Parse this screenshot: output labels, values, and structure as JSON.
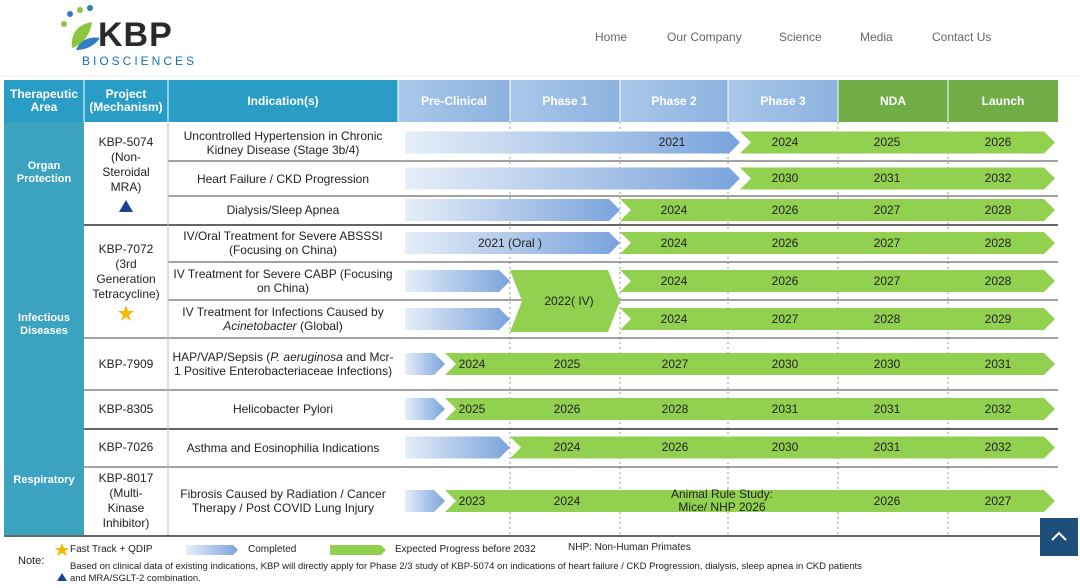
{
  "header": {
    "logo": {
      "mark": "KBP",
      "sub": "BIOSCIENCES"
    },
    "nav": [
      "Home",
      "Our Company",
      "Science",
      "Media",
      "Contact Us"
    ]
  },
  "table": {
    "columns": [
      "Therapeutic Area",
      "Project (Mechanism)",
      "Indication(s)",
      "Pre-Clinical",
      "Phase 1",
      "Phase 2",
      "Phase 3",
      "NDA",
      "Launch"
    ],
    "groups": [
      {
        "area": "Organ Protection",
        "projects": [
          {
            "name": "KBP-5074",
            "mechanism": "(Non-Steroidal MRA)",
            "marker": "triangle",
            "indications": [
              {
                "label": "Uncontrolled Hypertension in Chronic Kidney Disease (Stage 3b/4)",
                "milestones": [
                  "2021",
                  "2024",
                  "2025",
                  "2026"
                ]
              },
              {
                "label": "Heart Failure / CKD Progression",
                "milestones": [
                  "2030",
                  "2031",
                  "2032"
                ]
              },
              {
                "label": "Dialysis/Sleep Apnea",
                "milestones": [
                  "2024",
                  "2026",
                  "2027",
                  "2028"
                ]
              }
            ]
          }
        ]
      },
      {
        "area": "Infectious Diseases",
        "projects": [
          {
            "name": "KBP-7072",
            "mechanism": "(3rd Generation Tetracycline)",
            "marker": "star",
            "shared_milestone": "2022( IV)",
            "indications": [
              {
                "label": "IV/Oral Treatment for Severe ABSSSI (Focusing on China)",
                "milestones": [
                  "2021 (Oral )",
                  "2024",
                  "2026",
                  "2027",
                  "2028"
                ]
              },
              {
                "label": "IV Treatment for Severe CABP (Focusing on China)",
                "milestones": [
                  "2024",
                  "2026",
                  "2027",
                  "2028"
                ]
              },
              {
                "label": [
                  "IV Treatment for Infections Caused by ",
                  "Acinetobacter",
                  " (Global)"
                ],
                "italic": [
                  1
                ],
                "milestones": [
                  "2024",
                  "2027",
                  "2028",
                  "2029"
                ]
              }
            ]
          },
          {
            "name": "KBP-7909",
            "indications": [
              {
                "label": [
                  "HAP/VAP/Sepsis (",
                  "P. aeruginosa",
                  " and Mcr-1 Positive Enterobacteriaceae Infections)"
                ],
                "italic": [
                  1
                ],
                "milestones": [
                  "2024",
                  "2025",
                  "2027",
                  "2030",
                  "2030",
                  "2031"
                ]
              }
            ]
          },
          {
            "name": "KBP-8305",
            "indications": [
              {
                "label": "Helicobacter Pylori",
                "milestones": [
                  "2025",
                  "2026",
                  "2028",
                  "2031",
                  "2031",
                  "2032"
                ]
              }
            ]
          }
        ]
      },
      {
        "area": "Respiratory",
        "projects": [
          {
            "name": "KBP-7026",
            "indications": [
              {
                "label": "Asthma and Eosinophilia Indications",
                "milestones": [
                  "2024",
                  "2026",
                  "2030",
                  "2031",
                  "2032"
                ]
              }
            ]
          },
          {
            "name": "KBP-8017",
            "mechanism": "(Multi-Kinase Inhibitor)",
            "indications": [
              {
                "label": "Fibrosis Caused by Radiation / Cancer Therapy / Post COVID Lung Injury",
                "milestones": [
                  "2023",
                  "2024",
                  "Animal Rule Study: Mice/ NHP 2026",
                  "2026",
                  "2027"
                ]
              }
            ]
          }
        ]
      }
    ]
  },
  "legend": {
    "note_label": "Note:",
    "fast_track": "Fast Track + QDIP",
    "completed": "Completed",
    "expected": "Expected Progress before 2032",
    "nhp": "NHP: Non-Human Primates",
    "footnotes": [
      "Based on clinical data of existing indications, KBP will directly apply for Phase 2/3 study of KBP-5074 on indications of heart failure / CKD Progression, dialysis, sleep apnea in CKD patients",
      "and MRA/SGLT-2 combination."
    ]
  }
}
